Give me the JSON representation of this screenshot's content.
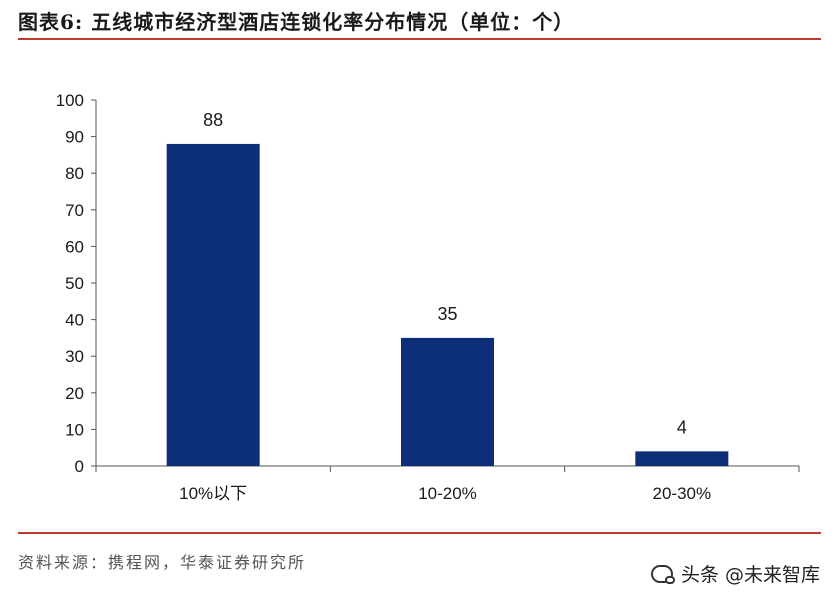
{
  "header": {
    "title": "图表6: 五线城市经济型酒店连锁化率分布情况（单位：个）"
  },
  "footer": {
    "source": "资料来源：携程网，华泰证券研究所"
  },
  "watermark": {
    "text": "头条 @未来智库",
    "icon": "wechat-icon"
  },
  "colors": {
    "bar": "#0d2f78",
    "rule": "#c0392b",
    "axis": "#555555"
  },
  "chart_data": {
    "type": "bar",
    "title": "",
    "xlabel": "",
    "ylabel": "",
    "categories": [
      "10%以下",
      "10-20%",
      "20-30%"
    ],
    "values": [
      88,
      35,
      4
    ],
    "data_labels": [
      "88",
      "35",
      "4"
    ],
    "ylim": [
      0,
      100
    ],
    "yticks": [
      0,
      10,
      20,
      30,
      40,
      50,
      60,
      70,
      80,
      90,
      100
    ],
    "grid": false,
    "legend": "none"
  }
}
